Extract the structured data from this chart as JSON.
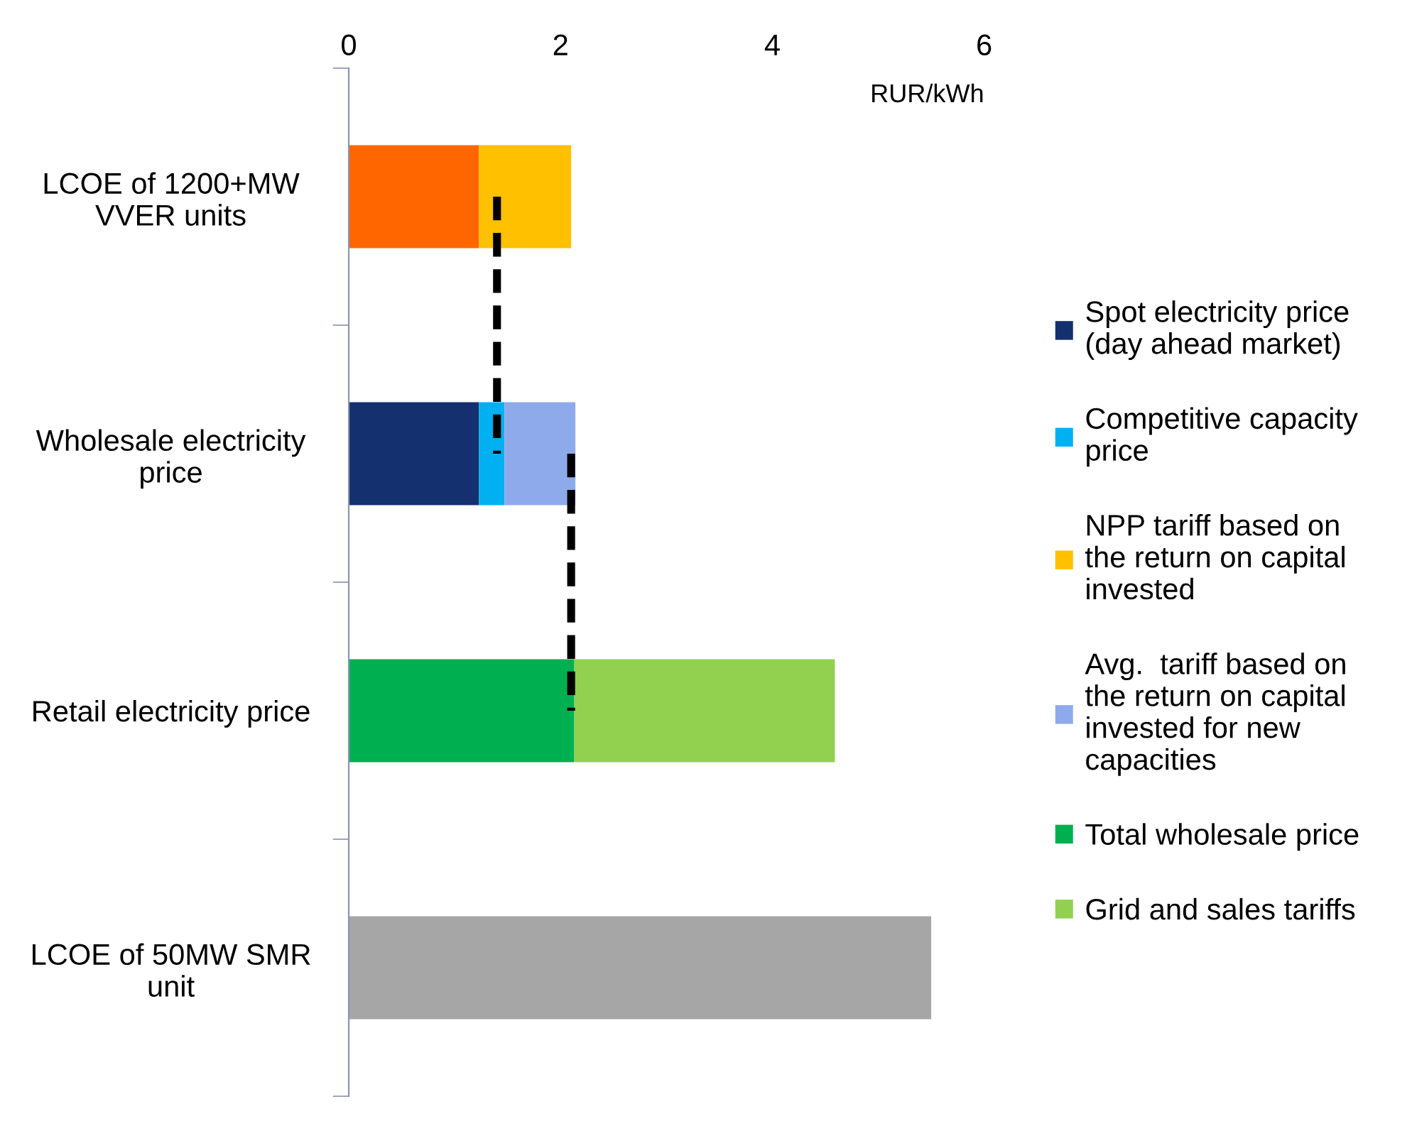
{
  "chart_data": {
    "type": "bar",
    "orientation": "horizontal",
    "stacked": true,
    "xlabel": "RUR/kWh",
    "categories": [
      "LCOE of 1200+MW VVER units",
      "Wholesale electricity price",
      "Retail electricity price",
      "LCOE of 50MW SMR unit"
    ],
    "xlim": [
      0,
      6
    ],
    "xticks": [
      0,
      2,
      4,
      6
    ],
    "grid": false,
    "legend": "right",
    "series": [
      {
        "color": "#ff6600",
        "values": [
          1.23,
          null,
          null,
          null
        ]
      },
      {
        "name": "Spot electricity price (day ahead market)",
        "color": "#14306e",
        "values": [
          null,
          1.23,
          null,
          null
        ]
      },
      {
        "name": "Competitive capacity price",
        "color": "#00b0f0",
        "values": [
          null,
          0.24,
          null,
          null
        ]
      },
      {
        "name": "NPP tariff based on the return on capital invested",
        "color": "#ffc000",
        "values": [
          0.87,
          null,
          null,
          null
        ]
      },
      {
        "name": "Avg.  tariff based on the return on capital invested for new capacities",
        "color": "#8faaeb",
        "values": [
          null,
          0.67,
          null,
          null
        ]
      },
      {
        "name": "Total wholesale price",
        "color": "#00b050",
        "values": [
          null,
          null,
          2.13,
          null
        ]
      },
      {
        "name": "Grid and sales tariffs",
        "color": "#92d050",
        "values": [
          null,
          null,
          2.46,
          null
        ]
      },
      {
        "color": "#a6a6a6",
        "values": [
          null,
          null,
          null,
          5.5
        ]
      },
      {
        "type": "line",
        "color": "#000000",
        "line_style": "dashed",
        "values": [
          1.4,
          1.4,
          null,
          null
        ]
      },
      {
        "type": "line",
        "color": "#000000",
        "line_style": "dashed",
        "values": [
          null,
          2.1,
          2.1,
          null
        ]
      }
    ]
  }
}
